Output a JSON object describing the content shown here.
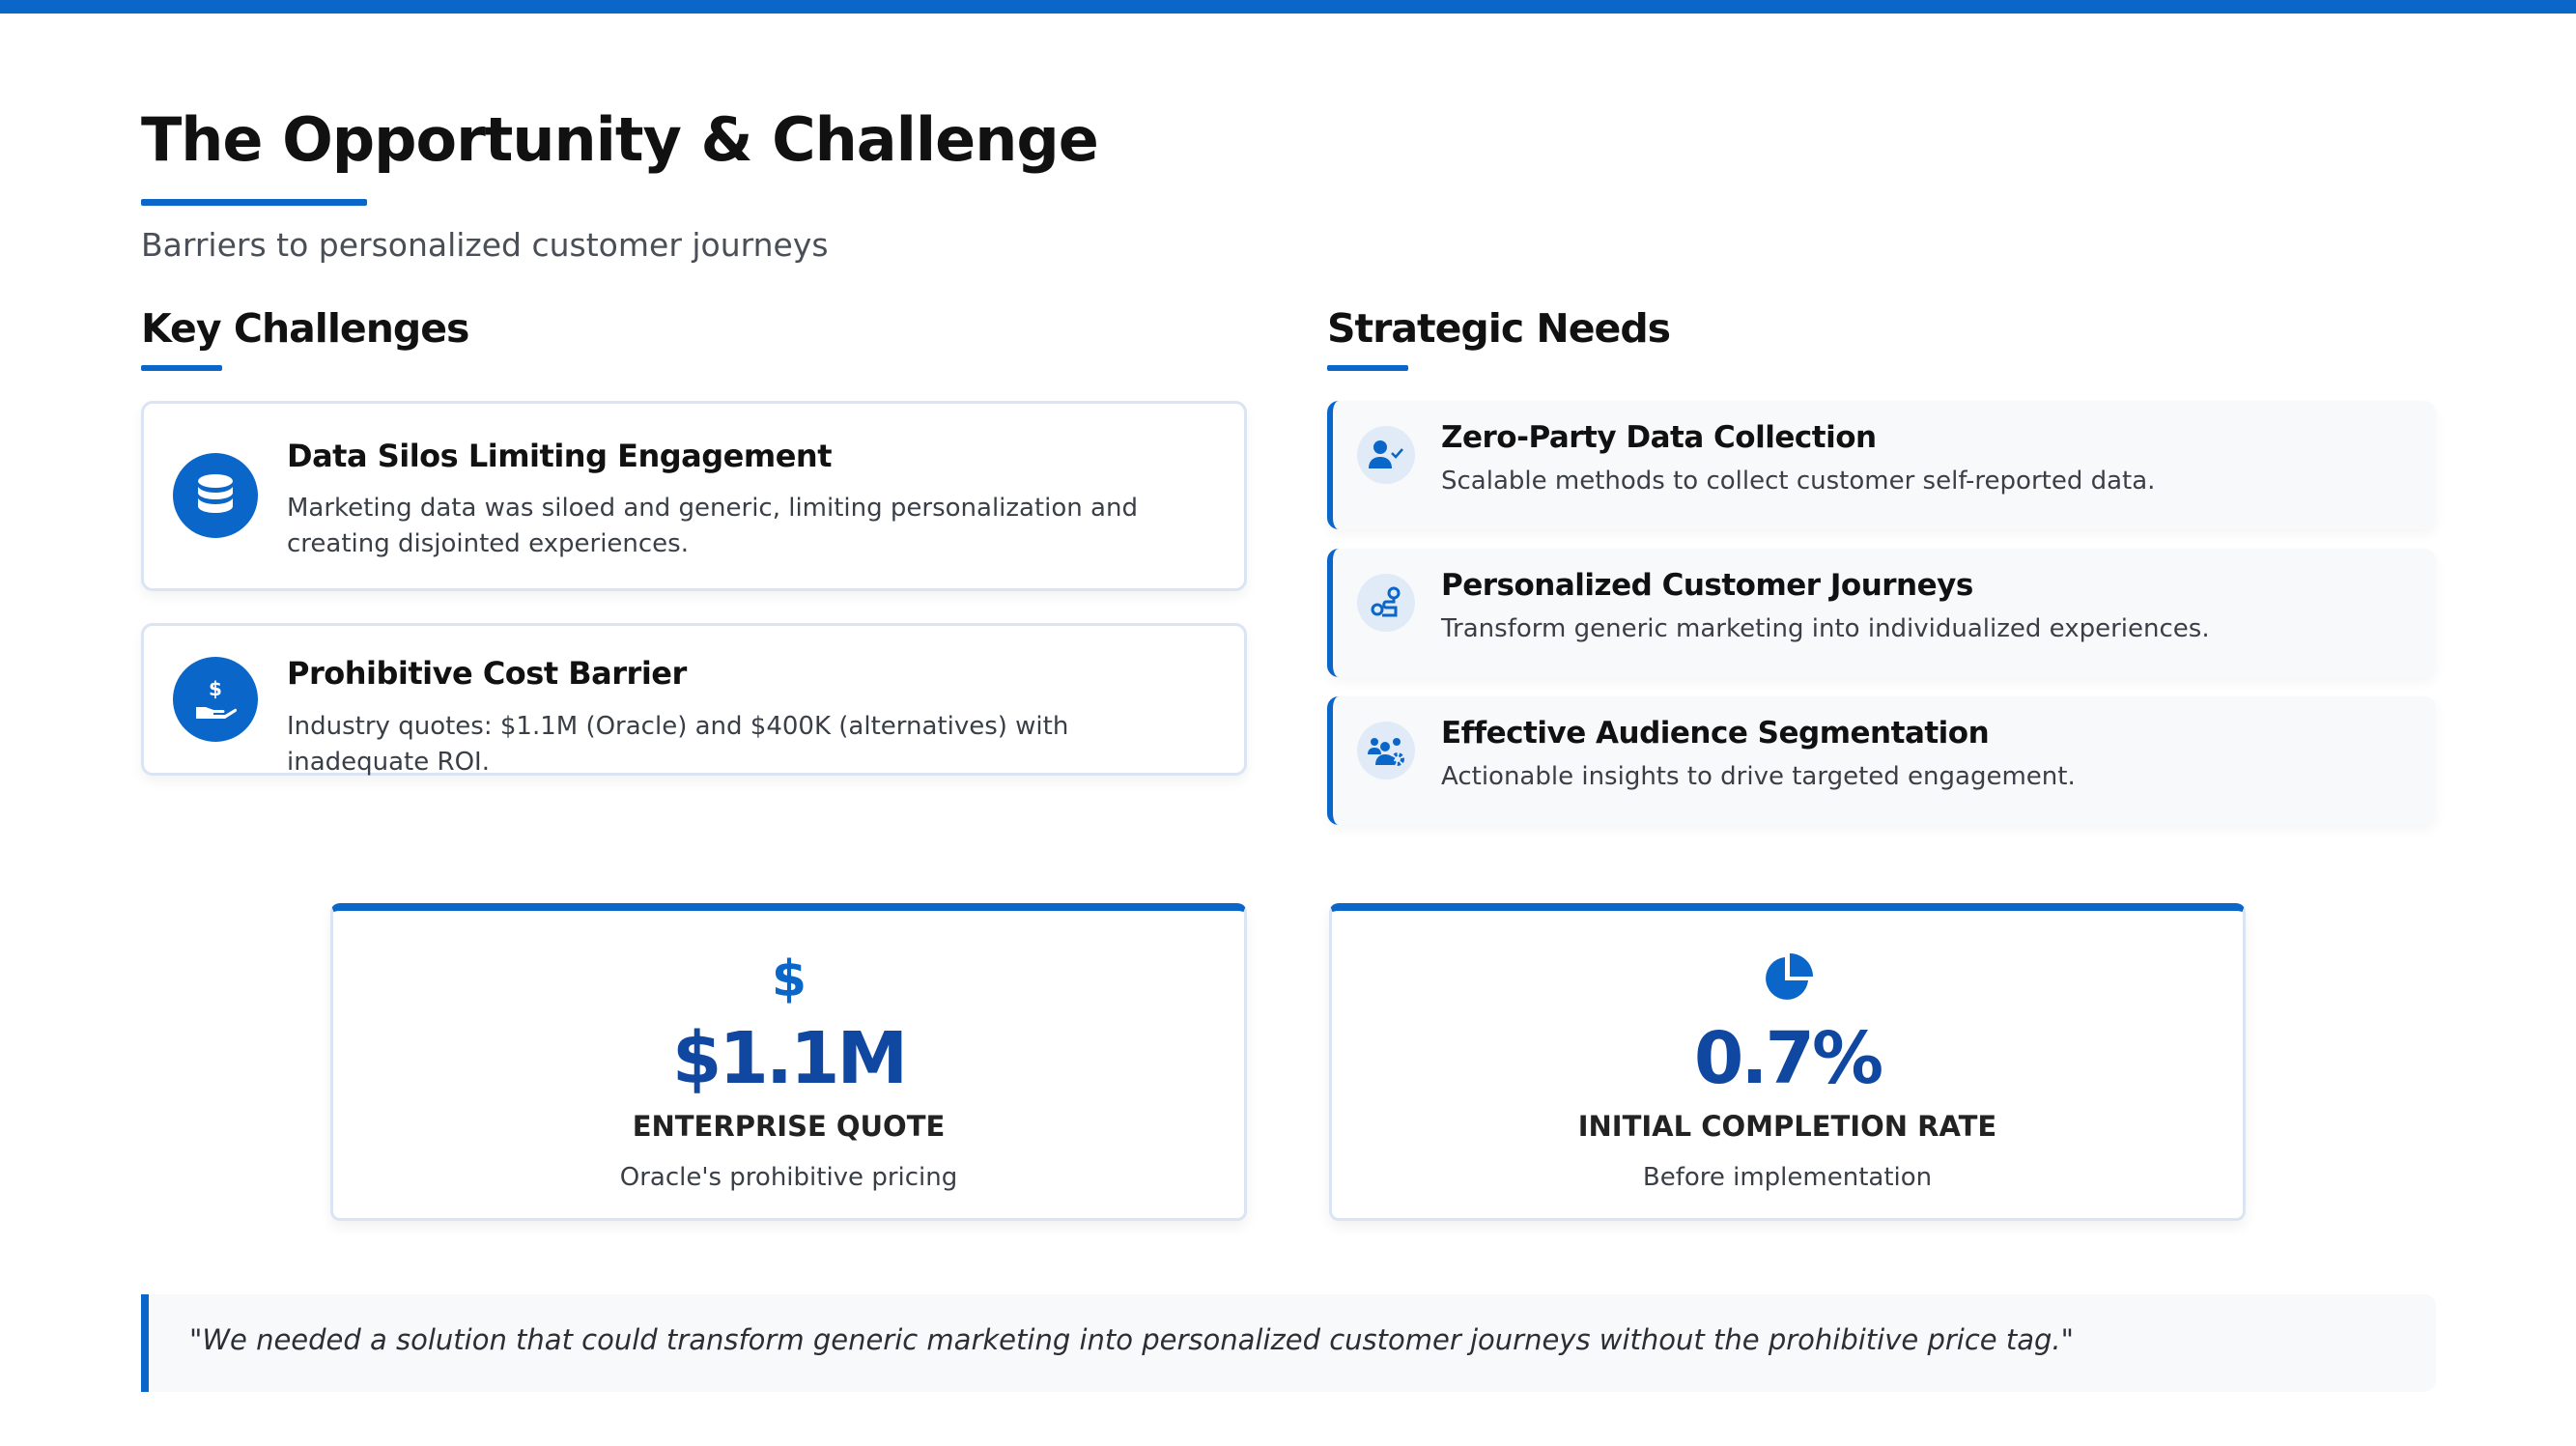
{
  "header": {
    "title": "The Opportunity & Challenge",
    "subtitle": "Barriers to personalized customer journeys"
  },
  "challenges": {
    "heading": "Key Challenges",
    "items": [
      {
        "icon": "database-icon",
        "title": "Data Silos Limiting Engagement",
        "description": "Marketing data was siloed and generic, limiting personalization and creating disjointed experiences."
      },
      {
        "icon": "hand-holding-dollar-icon",
        "title": "Prohibitive Cost Barrier",
        "description": "Industry quotes: $1.1M (Oracle) and $400K (alternatives) with inadequate ROI."
      }
    ]
  },
  "needs": {
    "heading": "Strategic Needs",
    "items": [
      {
        "icon": "user-check-icon",
        "title": "Zero-Party Data Collection",
        "description": "Scalable methods to collect customer self-reported data."
      },
      {
        "icon": "route-icon",
        "title": "Personalized Customer Journeys",
        "description": "Transform generic marketing into individualized experiences."
      },
      {
        "icon": "users-gear-icon",
        "title": "Effective Audience Segmentation",
        "description": "Actionable insights to drive targeted engagement."
      }
    ]
  },
  "stats": [
    {
      "icon": "dollar-icon",
      "value": "$1.1M",
      "label": "ENTERPRISE QUOTE",
      "note": "Oracle's prohibitive pricing"
    },
    {
      "icon": "pie-chart-icon",
      "value": "0.7%",
      "label": "INITIAL COMPLETION RATE",
      "note": "Before implementation"
    }
  ],
  "quote": "\"We needed a solution that could transform generic marketing into personalized customer journeys without the prohibitive price tag.\"",
  "colors": {
    "accent": "#0a66c8",
    "stat_value": "#0f47a1"
  }
}
